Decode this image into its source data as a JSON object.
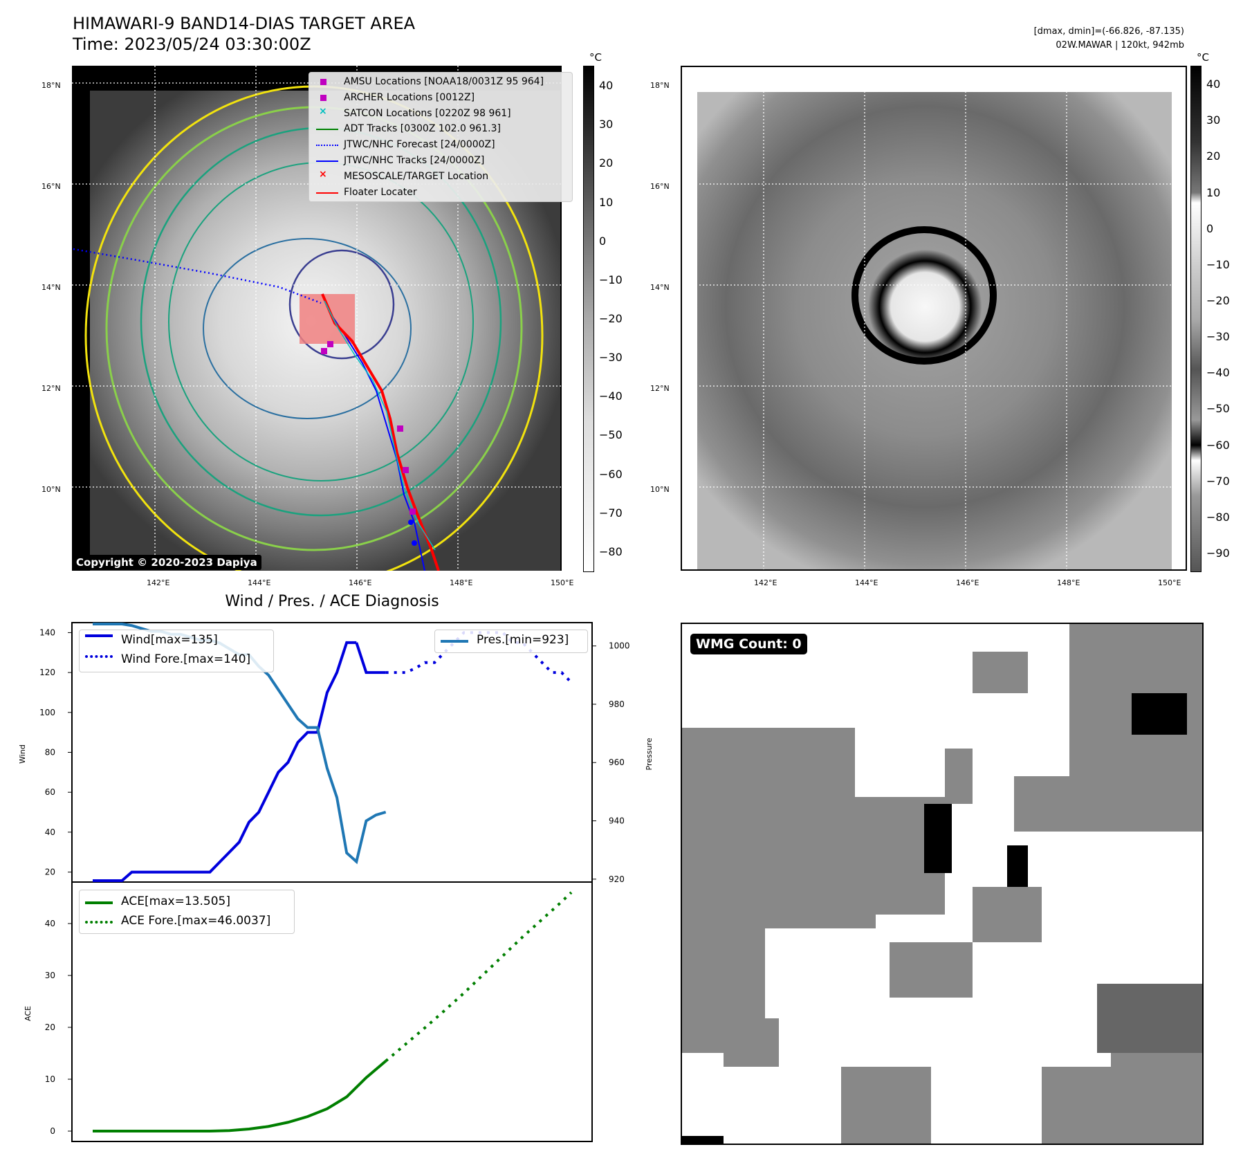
{
  "header": {
    "title_line1": "HIMAWARI-9 BAND14-DIAS TARGET AREA",
    "title_line2": "Time: 2023/05/24 03:30:00Z",
    "stats_line1": "[dmax, dmin]=(-66.826, -87.135)",
    "stats_line2": "02W.MAWAR | 120kt, 942mb"
  },
  "map_left": {
    "lat_labels": [
      "18°N",
      "16°N",
      "14°N",
      "12°N",
      "10°N"
    ],
    "lon_labels": [
      "142°E",
      "144°E",
      "146°E",
      "148°E",
      "150°E"
    ],
    "copyright": "Copyright © 2020-2023 Dapiya",
    "legend": [
      {
        "label": "AMSU Locations [NOAA18/0031Z 95 964]",
        "marker": "square",
        "color": "#c000c0"
      },
      {
        "label": "ARCHER Locations [0012Z]",
        "marker": "square",
        "color": "#c000c0"
      },
      {
        "label": "SATCON Locations [0220Z 98 961]",
        "marker": "x",
        "color": "#00bfbf"
      },
      {
        "label": "ADT Tracks [0300Z 102.0 961.3]",
        "marker": "line",
        "color": "#008000"
      },
      {
        "label": "JTWC/NHC Forecast [24/0000Z]",
        "marker": "dotted",
        "color": "#0000ff"
      },
      {
        "label": "JTWC/NHC Tracks [24/0000Z]",
        "marker": "line-dot",
        "color": "#0000ff"
      },
      {
        "label": "MESOSCALE/TARGET Location",
        "marker": "x",
        "color": "#ff0000"
      },
      {
        "label": "Floater Locater",
        "marker": "line",
        "color": "#ff0000"
      }
    ],
    "colorbar_unit": "°C",
    "colorbar_ticks": [
      "40",
      "30",
      "20",
      "10",
      "0",
      "−10",
      "−20",
      "−30",
      "−40",
      "−50",
      "−60",
      "−70",
      "−80"
    ]
  },
  "map_right": {
    "lat_labels": [
      "18°N",
      "16°N",
      "14°N",
      "12°N",
      "10°N"
    ],
    "lon_labels": [
      "142°E",
      "144°E",
      "146°E",
      "148°E",
      "150°E"
    ],
    "colorbar_unit": "°C",
    "colorbar_ticks": [
      "40",
      "30",
      "20",
      "10",
      "0",
      "−10",
      "−20",
      "−30",
      "−40",
      "−50",
      "−60",
      "−70",
      "−80",
      "−90"
    ]
  },
  "diag_title": "Wind / Pres. / ACE Diagnosis",
  "wmg_label": "WMG Count: 0",
  "chart_data": [
    {
      "type": "line",
      "title": "Wind / Pres. / ACE Diagnosis",
      "ylabel": "Wind",
      "ylabel_right": "Pressure",
      "ylim": [
        15,
        145
      ],
      "ylim_right": [
        919,
        1008
      ],
      "yticks": [
        20,
        40,
        60,
        80,
        100,
        120,
        140
      ],
      "yticks_right": [
        920,
        940,
        960,
        980,
        1000
      ],
      "legend": [
        "Wind[max=135]",
        "Wind Fore.[max=140]"
      ],
      "legend_right": [
        "Pres.[min=923]"
      ],
      "series": [
        {
          "name": "Wind[max=135]",
          "color": "#0000dd",
          "style": "solid",
          "x": [
            0,
            1,
            2,
            3,
            4,
            5,
            6,
            7,
            8,
            9,
            10,
            11,
            12,
            13,
            14,
            15,
            16,
            17,
            18,
            19,
            20,
            21,
            22,
            23,
            24,
            25,
            26,
            27
          ],
          "values": [
            15,
            15,
            15,
            15,
            20,
            20,
            20,
            20,
            20,
            20,
            20,
            20,
            20,
            25,
            30,
            35,
            45,
            50,
            60,
            70,
            75,
            85,
            90,
            90,
            110,
            120,
            135,
            135
          ]
        },
        {
          "name": "Wind[max=135] tail",
          "color": "#0000dd",
          "style": "solid",
          "x": [
            27,
            28,
            29,
            30
          ],
          "values": [
            135,
            120,
            120,
            120
          ]
        },
        {
          "name": "Wind Fore.[max=140]",
          "color": "#0000dd",
          "style": "dotted",
          "x": [
            30,
            31,
            32,
            33,
            34,
            35,
            36,
            37,
            38,
            39,
            40,
            41,
            42,
            43,
            44,
            45,
            46,
            47,
            48,
            49
          ],
          "values": [
            120,
            120,
            120,
            122,
            125,
            125,
            130,
            135,
            140,
            140,
            140,
            140,
            140,
            135,
            135,
            130,
            125,
            120,
            120,
            115
          ]
        },
        {
          "name": "Pres.[min=923]",
          "color": "#1f77b4",
          "style": "solid",
          "axis": "right",
          "x": [
            0,
            1,
            2,
            3,
            4,
            5,
            6,
            7,
            8,
            9,
            10,
            11,
            12,
            13,
            14,
            15,
            16,
            17,
            18,
            19,
            20,
            21,
            22,
            23,
            24,
            25,
            26,
            27,
            28,
            29,
            30
          ],
          "values": [
            1010,
            1010,
            1009,
            1008,
            1007,
            1006,
            1005,
            1005,
            1004,
            1004,
            1003,
            1002,
            1002,
            1001,
            999,
            997,
            997,
            993,
            990,
            985,
            980,
            975,
            972,
            972,
            958,
            948,
            929,
            926,
            940,
            942,
            943
          ]
        }
      ]
    },
    {
      "type": "line",
      "ylabel": "ACE",
      "ylim": [
        -2,
        48
      ],
      "yticks": [
        0,
        10,
        20,
        30,
        40
      ],
      "legend": [
        "ACE[max=13.505]",
        "ACE Fore.[max=46.0037]"
      ],
      "series": [
        {
          "name": "ACE[max=13.505]",
          "color": "#007f00",
          "style": "solid",
          "x": [
            0,
            2,
            4,
            6,
            8,
            10,
            12,
            14,
            16,
            18,
            20,
            22,
            24,
            26,
            28,
            30
          ],
          "values": [
            0,
            0,
            0,
            0,
            0,
            0,
            0,
            0.1,
            0.4,
            0.9,
            1.7,
            2.8,
            4.3,
            6.6,
            10.3,
            13.5
          ]
        },
        {
          "name": "ACE Fore.[max=46.0037]",
          "color": "#007f00",
          "style": "dotted",
          "x": [
            30,
            32,
            34,
            36,
            38,
            40,
            42,
            44,
            46,
            48,
            49
          ],
          "values": [
            13.5,
            16.7,
            19.9,
            23.2,
            26.6,
            30.2,
            33.8,
            37.4,
            40.8,
            44.2,
            46
          ]
        }
      ]
    }
  ]
}
